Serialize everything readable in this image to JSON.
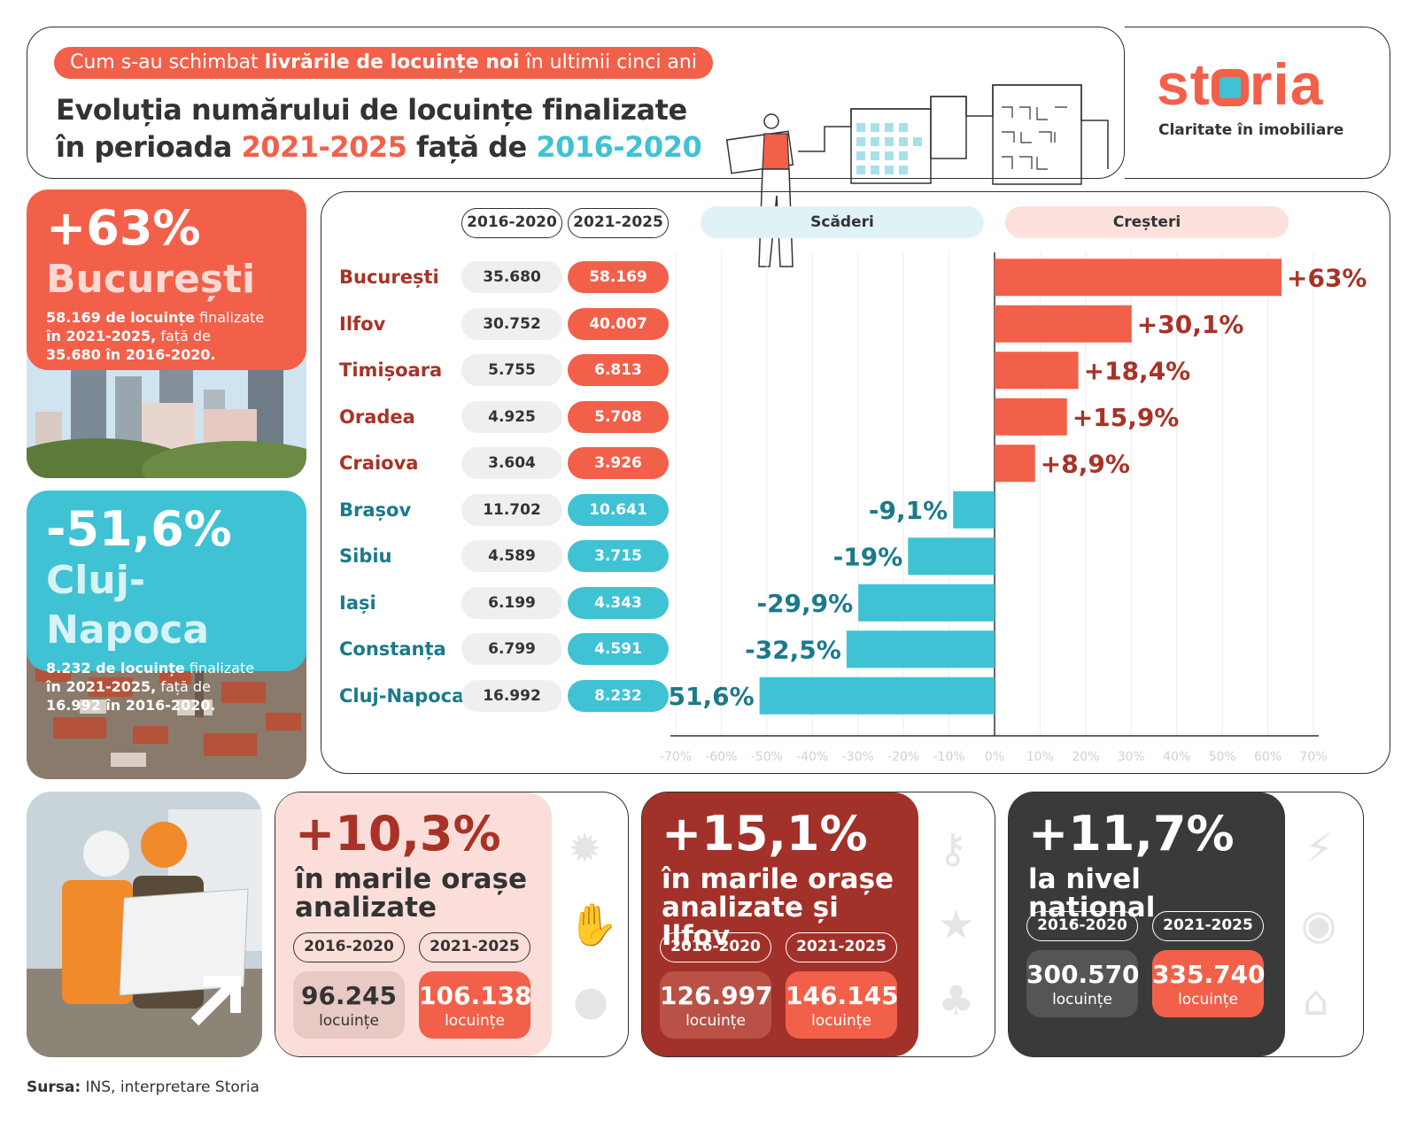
{
  "header": {
    "subtitle_pre": "Cum s-au schimbat ",
    "subtitle_bold": "livrările de locuințe noi",
    "subtitle_post": " în ultimii cinci ani",
    "title_line1": "Evoluția numărului de locuințe finalizate",
    "title_line2_pre": "în perioada ",
    "period_new": "2021-2025",
    "title_line2_mid": " față de ",
    "period_old": "2016-2020"
  },
  "brand": {
    "logo_s": "st",
    "logo_e": "ria",
    "tagline": "Claritate în imobiliare"
  },
  "highlight_top": {
    "pct": "+63%",
    "city": "București",
    "desc_bold1": "58.169 de locuințe",
    "desc_norm1": " finalizate",
    "desc_bold2": "în 2021-2025,",
    "desc_norm2": " față de",
    "desc_line3": "35.680 în 2016-2020."
  },
  "highlight_bottom": {
    "pct": "-51,6%",
    "city": "Cluj-Napoca",
    "desc_bold1": "8.232 de locuințe",
    "desc_norm1": " finalizate",
    "desc_bold2": "în 2021-2025,",
    "desc_norm2": " față de",
    "desc_line3": "16.992 în 2016-2020."
  },
  "table_headers": {
    "col_old": "2016-2020",
    "col_new": "2021-2025"
  },
  "legend": {
    "decrease": "Scăderi",
    "increase": "Creșteri"
  },
  "chart_data": {
    "type": "bar",
    "orientation": "horizontal",
    "categories": [
      "București",
      "Ilfov",
      "Timișoara",
      "Oradea",
      "Craiova",
      "Brașov",
      "Sibiu",
      "Iași",
      "Constanța",
      "Cluj-Napoca"
    ],
    "values_2016_2020": [
      "35.680",
      "30.752",
      "5.755",
      "4.925",
      "3.604",
      "11.702",
      "4.589",
      "6.199",
      "6.799",
      "16.992"
    ],
    "values_2021_2025": [
      "58.169",
      "40.007",
      "6.813",
      "5.708",
      "3.926",
      "10.641",
      "3.715",
      "4.343",
      "4.591",
      "8.232"
    ],
    "values": [
      63,
      30.1,
      18.4,
      15.9,
      8.9,
      -9.1,
      -19,
      -29.9,
      -32.5,
      -51.6
    ],
    "value_labels": [
      "+63%",
      "+30,1%",
      "+18,4%",
      "+15,9%",
      "+8,9%",
      "-9,1%",
      "-19%",
      "-29,9%",
      "-32,5%",
      "-51,6%"
    ],
    "xlim": [
      -70,
      70
    ],
    "x_ticks": [
      "-70%",
      "-60%",
      "-50%",
      "-40%",
      "-30%",
      "-20%",
      "-10%",
      "0%",
      "10%",
      "20%",
      "30%",
      "40%",
      "50%",
      "60%",
      "70%"
    ],
    "grid": true,
    "colors": {
      "increase": "#f2604a",
      "decrease": "#3fc2d4",
      "increase_text": "#a93226",
      "decrease_text": "#1a7a8a"
    }
  },
  "summary": [
    {
      "pct": "+10,3%",
      "label1": "în marile orașe",
      "label2": "analizate",
      "old_period": "2016-2020",
      "new_period": "2021-2025",
      "old_value": "96.245",
      "new_value": "106.138",
      "unit": "locuințe"
    },
    {
      "pct": "+15,1%",
      "label1": "în marile orașe",
      "label2": "analizate și Ilfov",
      "old_period": "2016-2020",
      "new_period": "2021-2025",
      "old_value": "126.997",
      "new_value": "146.145",
      "unit": "locuințe"
    },
    {
      "pct": "+11,7%",
      "label1": "la nivel național",
      "label2": "",
      "old_period": "2016-2020",
      "new_period": "2021-2025",
      "old_value": "300.570",
      "new_value": "335.740",
      "unit": "locuințe"
    }
  ],
  "source": {
    "label": "Sursa:",
    "text": " INS, interpretare Storia"
  }
}
